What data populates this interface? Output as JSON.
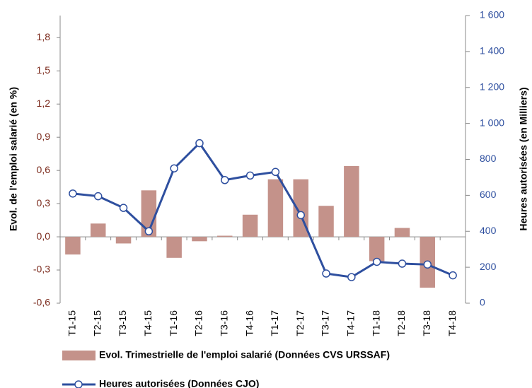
{
  "chart_data": {
    "type": "bar-line",
    "ylabel": "Evol. de l'emploi salarié (en %)",
    "y2label": "Heures autorisées (en Milliers)",
    "categories": [
      "T1-15",
      "T2-15",
      "T3-15",
      "T4-15",
      "T1-16",
      "T2-16",
      "T3-16",
      "T4-16",
      "T1-17",
      "T2-17",
      "T3-17",
      "T4-17",
      "T1-18",
      "T2-18",
      "T3-18",
      "T4-18"
    ],
    "series": [
      {
        "name": "Evol. Trimestrielle de l'emploi salarié (Données CVS URSSAF)",
        "type": "bar",
        "color": "#c4928a",
        "values": [
          -0.16,
          0.12,
          -0.06,
          0.42,
          -0.19,
          -0.04,
          0.01,
          0.2,
          0.52,
          0.52,
          0.28,
          0.64,
          -0.22,
          0.08,
          -0.46,
          null
        ]
      },
      {
        "name": "Heures autorisées (Données CJO)",
        "type": "line",
        "axis": "y2",
        "color": "#2e4f9f",
        "values": [
          610,
          595,
          530,
          400,
          750,
          890,
          685,
          710,
          730,
          490,
          165,
          145,
          230,
          220,
          215,
          155
        ]
      }
    ],
    "ylim": [
      -0.6,
      2.0
    ],
    "yticks": [
      {
        "value": -0.6,
        "label": "-0,6"
      },
      {
        "value": -0.3,
        "label": "-0,3"
      },
      {
        "value": 0,
        "label": "0,0"
      },
      {
        "value": 0.3,
        "label": "0,3"
      },
      {
        "value": 0.6,
        "label": "0,6"
      },
      {
        "value": 0.9,
        "label": "0,9"
      },
      {
        "value": 1.2,
        "label": "1,2"
      },
      {
        "value": 1.5,
        "label": "1,5"
      },
      {
        "value": 1.8,
        "label": "1,8"
      }
    ],
    "y2lim": [
      0,
      1600
    ],
    "y2ticks": [
      0,
      200,
      400,
      600,
      800,
      {
        "value": 1000,
        "label": "1 000"
      },
      {
        "value": 1200,
        "label": "1 200"
      },
      {
        "value": 1400,
        "label": "1 400"
      },
      {
        "value": 1600,
        "label": "1 600"
      }
    ]
  }
}
